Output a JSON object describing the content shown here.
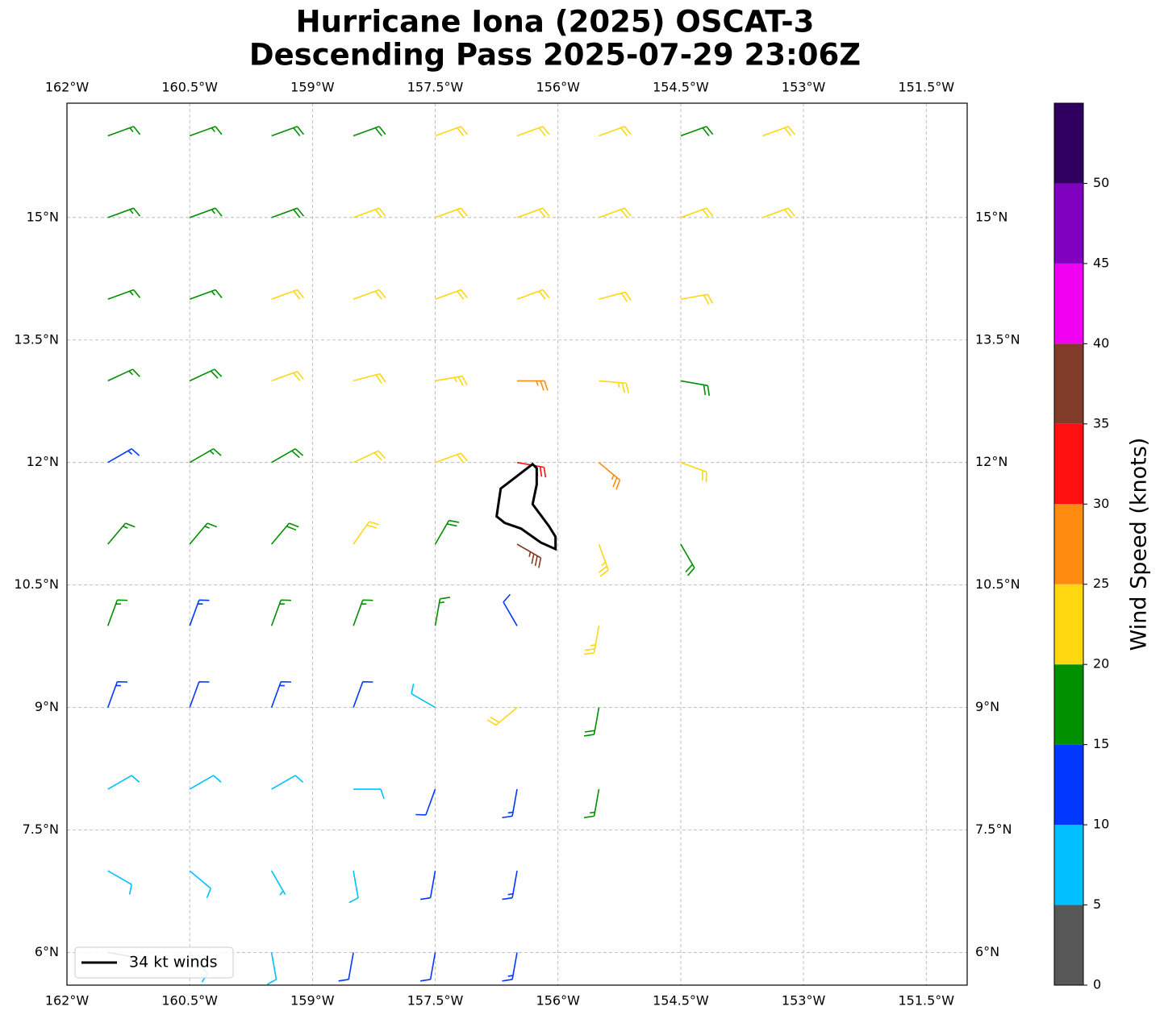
{
  "chart_data": {
    "type": "wind-barbs",
    "title": [
      "Hurricane Iona (2025) OSCAT-3",
      "Descending Pass 2025-07-29 23:06Z"
    ],
    "xlim": [
      -162,
      -151
    ],
    "ylim": [
      5.6,
      16.4
    ],
    "xticks": [
      {
        "value": -162,
        "label": "162°W"
      },
      {
        "value": -160.5,
        "label": "160.5°W"
      },
      {
        "value": -159,
        "label": "159°W"
      },
      {
        "value": -157.5,
        "label": "157.5°W"
      },
      {
        "value": -156,
        "label": "156°W"
      },
      {
        "value": -154.5,
        "label": "154.5°W"
      },
      {
        "value": -153,
        "label": "153°W"
      },
      {
        "value": -151.5,
        "label": "151.5°W"
      }
    ],
    "yticks": [
      {
        "value": 6,
        "label": "6°N"
      },
      {
        "value": 7.5,
        "label": "7.5°N"
      },
      {
        "value": 9,
        "label": "9°N"
      },
      {
        "value": 10.5,
        "label": "10.5°N"
      },
      {
        "value": 12,
        "label": "12°N"
      },
      {
        "value": 13.5,
        "label": "13.5°N"
      },
      {
        "value": 15,
        "label": "15°N"
      }
    ],
    "grid": true,
    "colorbar": {
      "label": "Wind Speed (knots)",
      "clim": [
        0,
        55
      ],
      "ticks": [
        0,
        5,
        10,
        15,
        20,
        25,
        30,
        35,
        40,
        45,
        50
      ],
      "colors": [
        "#575757",
        "#00bfff",
        "#0038ff",
        "#009000",
        "#ffd710",
        "#ff8c10",
        "#ff1010",
        "#803c28",
        "#f000f0",
        "#8000c0",
        "#300060"
      ]
    },
    "contour": {
      "name": "34 kt winds",
      "color": "#000000",
      "lon": [
        -156.31,
        -156.7,
        -156.75,
        -156.65,
        -156.45,
        -156.21,
        -156.03,
        -156.03,
        -156.11,
        -156.31,
        -156.26,
        -156.26
      ],
      "lat": [
        11.98,
        11.68,
        11.34,
        11.26,
        11.19,
        11.02,
        10.94,
        11.09,
        11.22,
        11.49,
        11.73,
        11.93
      ]
    },
    "legend": "lower left",
    "barbs": [
      {
        "lon": -161.5,
        "lat": 16,
        "speed": 17,
        "direction": 70
      },
      {
        "lon": -160.5,
        "lat": 16,
        "speed": 17,
        "direction": 70
      },
      {
        "lon": -159.5,
        "lat": 16,
        "speed": 18,
        "direction": 70
      },
      {
        "lon": -158.5,
        "lat": 16,
        "speed": 18,
        "direction": 70
      },
      {
        "lon": -157.5,
        "lat": 16,
        "speed": 22,
        "direction": 70
      },
      {
        "lon": -156.5,
        "lat": 16,
        "speed": 22,
        "direction": 70
      },
      {
        "lon": -155.5,
        "lat": 16,
        "speed": 22,
        "direction": 70
      },
      {
        "lon": -154.5,
        "lat": 16,
        "speed": 18,
        "direction": 70
      },
      {
        "lon": -153.5,
        "lat": 16,
        "speed": 21,
        "direction": 70
      },
      {
        "lon": -161.5,
        "lat": 15,
        "speed": 17,
        "direction": 70
      },
      {
        "lon": -160.5,
        "lat": 15,
        "speed": 17,
        "direction": 70
      },
      {
        "lon": -159.5,
        "lat": 15,
        "speed": 18,
        "direction": 70
      },
      {
        "lon": -158.5,
        "lat": 15,
        "speed": 21,
        "direction": 70
      },
      {
        "lon": -157.5,
        "lat": 15,
        "speed": 22,
        "direction": 70
      },
      {
        "lon": -156.5,
        "lat": 15,
        "speed": 22,
        "direction": 70
      },
      {
        "lon": -155.5,
        "lat": 15,
        "speed": 22,
        "direction": 70
      },
      {
        "lon": -154.5,
        "lat": 15,
        "speed": 22,
        "direction": 70
      },
      {
        "lon": -153.5,
        "lat": 15,
        "speed": 21,
        "direction": 70
      },
      {
        "lon": -161.5,
        "lat": 14,
        "speed": 17,
        "direction": 70
      },
      {
        "lon": -160.5,
        "lat": 14,
        "speed": 17,
        "direction": 70
      },
      {
        "lon": -159.5,
        "lat": 14,
        "speed": 21,
        "direction": 70
      },
      {
        "lon": -158.5,
        "lat": 14,
        "speed": 22,
        "direction": 70
      },
      {
        "lon": -157.5,
        "lat": 14,
        "speed": 22,
        "direction": 70
      },
      {
        "lon": -156.5,
        "lat": 14,
        "speed": 22,
        "direction": 70
      },
      {
        "lon": -155.5,
        "lat": 14,
        "speed": 22,
        "direction": 75
      },
      {
        "lon": -154.5,
        "lat": 14,
        "speed": 22,
        "direction": 80
      },
      {
        "lon": -161.5,
        "lat": 13,
        "speed": 17,
        "direction": 65
      },
      {
        "lon": -160.5,
        "lat": 13,
        "speed": 18,
        "direction": 65
      },
      {
        "lon": -159.5,
        "lat": 13,
        "speed": 21,
        "direction": 70
      },
      {
        "lon": -158.5,
        "lat": 13,
        "speed": 22,
        "direction": 75
      },
      {
        "lon": -157.5,
        "lat": 13,
        "speed": 23,
        "direction": 80
      },
      {
        "lon": -156.5,
        "lat": 13,
        "speed": 26,
        "direction": 90
      },
      {
        "lon": -155.5,
        "lat": 13,
        "speed": 24,
        "direction": 95
      },
      {
        "lon": -154.5,
        "lat": 13,
        "speed": 19,
        "direction": 100
      },
      {
        "lon": -161.5,
        "lat": 12,
        "speed": 13,
        "direction": 60
      },
      {
        "lon": -160.5,
        "lat": 12,
        "speed": 17,
        "direction": 60
      },
      {
        "lon": -159.5,
        "lat": 12,
        "speed": 18,
        "direction": 60
      },
      {
        "lon": -158.5,
        "lat": 12,
        "speed": 21,
        "direction": 65
      },
      {
        "lon": -157.5,
        "lat": 12,
        "speed": 22,
        "direction": 70
      },
      {
        "lon": -156.5,
        "lat": 12,
        "speed": 32,
        "direction": 100
      },
      {
        "lon": -155.5,
        "lat": 12,
        "speed": 27,
        "direction": 130
      },
      {
        "lon": -154.5,
        "lat": 12,
        "speed": 22,
        "direction": 110
      },
      {
        "lon": -161.5,
        "lat": 11,
        "speed": 16,
        "direction": 40
      },
      {
        "lon": -160.5,
        "lat": 11,
        "speed": 17,
        "direction": 40
      },
      {
        "lon": -159.5,
        "lat": 11,
        "speed": 18,
        "direction": 40
      },
      {
        "lon": -158.5,
        "lat": 11,
        "speed": 21,
        "direction": 35
      },
      {
        "lon": -157.5,
        "lat": 11,
        "speed": 19,
        "direction": 30
      },
      {
        "lon": -156.5,
        "lat": 11,
        "speed": 37,
        "direction": 120
      },
      {
        "lon": -155.5,
        "lat": 11,
        "speed": 24,
        "direction": 160
      },
      {
        "lon": -154.5,
        "lat": 11,
        "speed": 18,
        "direction": 150
      },
      {
        "lon": -161.5,
        "lat": 10,
        "speed": 16,
        "direction": 20
      },
      {
        "lon": -160.5,
        "lat": 10,
        "speed": 14,
        "direction": 20
      },
      {
        "lon": -159.5,
        "lat": 10,
        "speed": 16,
        "direction": 20
      },
      {
        "lon": -158.5,
        "lat": 10,
        "speed": 17,
        "direction": 20
      },
      {
        "lon": -157.5,
        "lat": 10,
        "speed": 17,
        "direction": 10
      },
      {
        "lon": -156.5,
        "lat": 10,
        "speed": 12,
        "direction": 330
      },
      {
        "lon": -155.5,
        "lat": 10,
        "speed": 24,
        "direction": 190
      },
      {
        "lon": -161.5,
        "lat": 9,
        "speed": 13,
        "direction": 20
      },
      {
        "lon": -160.5,
        "lat": 9,
        "speed": 12,
        "direction": 20
      },
      {
        "lon": -159.5,
        "lat": 9,
        "speed": 13,
        "direction": 20
      },
      {
        "lon": -158.5,
        "lat": 9,
        "speed": 12,
        "direction": 20
      },
      {
        "lon": -157.5,
        "lat": 9,
        "speed": 9,
        "direction": 300
      },
      {
        "lon": -156.5,
        "lat": 9,
        "speed": 22,
        "direction": 230
      },
      {
        "lon": -155.5,
        "lat": 9,
        "speed": 18,
        "direction": 190
      },
      {
        "lon": -161.5,
        "lat": 8,
        "speed": 9,
        "direction": 60
      },
      {
        "lon": -160.5,
        "lat": 8,
        "speed": 8,
        "direction": 60
      },
      {
        "lon": -159.5,
        "lat": 8,
        "speed": 9,
        "direction": 60
      },
      {
        "lon": -158.5,
        "lat": 8,
        "speed": 9,
        "direction": 90
      },
      {
        "lon": -157.5,
        "lat": 8,
        "speed": 12,
        "direction": 200
      },
      {
        "lon": -156.5,
        "lat": 8,
        "speed": 13,
        "direction": 190
      },
      {
        "lon": -155.5,
        "lat": 8,
        "speed": 17,
        "direction": 190
      },
      {
        "lon": -161.5,
        "lat": 7,
        "speed": 8,
        "direction": 120
      },
      {
        "lon": -160.5,
        "lat": 7,
        "speed": 9,
        "direction": 130
      },
      {
        "lon": -159.5,
        "lat": 7,
        "speed": 7,
        "direction": 150
      },
      {
        "lon": -158.5,
        "lat": 7,
        "speed": 8,
        "direction": 170
      },
      {
        "lon": -157.5,
        "lat": 7,
        "speed": 11,
        "direction": 190
      },
      {
        "lon": -156.5,
        "lat": 7,
        "speed": 13,
        "direction": 190
      },
      {
        "lon": -161.5,
        "lat": 6,
        "speed": 4,
        "direction": 100
      },
      {
        "lon": -160.5,
        "lat": 6,
        "speed": 8,
        "direction": 140
      },
      {
        "lon": -159.5,
        "lat": 6,
        "speed": 9,
        "direction": 170
      },
      {
        "lon": -158.5,
        "lat": 6,
        "speed": 11,
        "direction": 190
      },
      {
        "lon": -157.5,
        "lat": 6,
        "speed": 12,
        "direction": 190
      },
      {
        "lon": -156.5,
        "lat": 6,
        "speed": 13,
        "direction": 190
      }
    ]
  }
}
